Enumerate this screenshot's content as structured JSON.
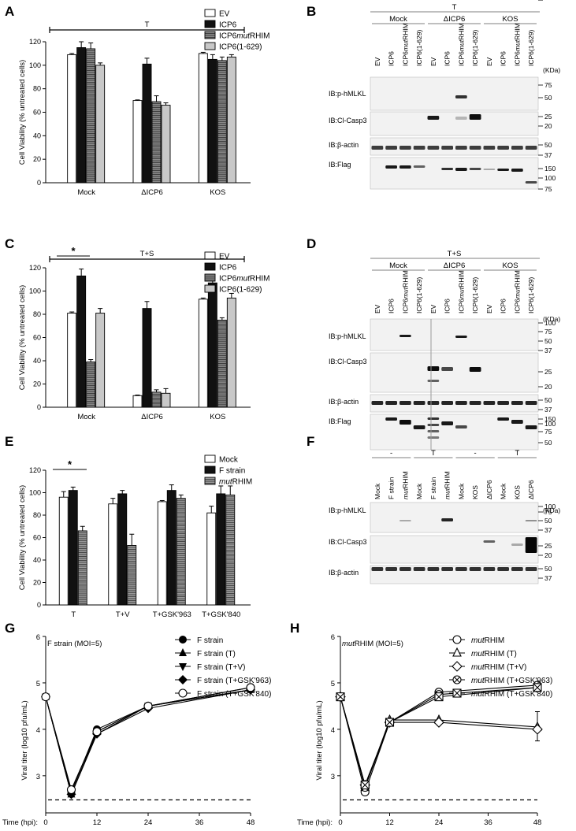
{
  "panels": {
    "A": {
      "label": "A",
      "chart_data": {
        "type": "bar",
        "treatment": "T",
        "categories": [
          "Mock",
          "ΔICP6",
          "KOS"
        ],
        "series": [
          {
            "name": "EV",
            "values": [
              109,
              70,
              110
            ],
            "err": [
              1,
              0.5,
              1
            ],
            "color": "#ffffff"
          },
          {
            "name": "ICP6",
            "values": [
              115,
              101,
              105
            ],
            "err": [
              5,
              5,
              4
            ],
            "color": "#111111"
          },
          {
            "name": "ICP6mutRHIM",
            "values": [
              114,
              69,
              104
            ],
            "err": [
              5,
              5,
              3
            ],
            "color": "#888888"
          },
          {
            "name": "ICP6(1-629)",
            "values": [
              100,
              66,
              107
            ],
            "err": [
              2,
              2,
              2
            ],
            "color": "#c8c8c8"
          }
        ],
        "ylabel": "Cell Viability (% untreated cells)",
        "ylim": [
          0,
          120
        ],
        "yticks": [
          0,
          20,
          40,
          60,
          80,
          100,
          120
        ],
        "legend": "top-right"
      }
    },
    "C": {
      "label": "C",
      "chart_data": {
        "type": "bar",
        "treatment": "T+S",
        "significance": "*",
        "categories": [
          "Mock",
          "ΔICP6",
          "KOS"
        ],
        "series": [
          {
            "name": "EV",
            "values": [
              81,
              10,
              93
            ],
            "err": [
              1,
              0.5,
              1
            ],
            "color": "#ffffff"
          },
          {
            "name": "ICP6",
            "values": [
              113,
              85,
              107
            ],
            "err": [
              6,
              6,
              6
            ],
            "color": "#111111"
          },
          {
            "name": "ICP6mutRHIM",
            "values": [
              39,
              13,
              75
            ],
            "err": [
              2,
              2,
              2
            ],
            "color": "#888888"
          },
          {
            "name": "ICP6(1-629)",
            "values": [
              81,
              12,
              94
            ],
            "err": [
              4,
              4,
              4
            ],
            "color": "#c8c8c8"
          }
        ],
        "ylabel": "Cell Viability (% untreated cells)",
        "ylim": [
          0,
          120
        ],
        "yticks": [
          0,
          20,
          40,
          60,
          80,
          100,
          120
        ],
        "legend": "top-right"
      }
    },
    "E": {
      "label": "E",
      "chart_data": {
        "type": "bar",
        "significance": "*",
        "categories": [
          "T",
          "T+V",
          "T+GSK'963",
          "T+GSK'840"
        ],
        "series": [
          {
            "name": "Mock",
            "values": [
              96,
              90,
              92,
              82
            ],
            "err": [
              5,
              5,
              1,
              6
            ],
            "color": "#ffffff"
          },
          {
            "name": "F strain",
            "values": [
              102,
              99,
              102,
              99
            ],
            "err": [
              3,
              3,
              5,
              7
            ],
            "color": "#111111"
          },
          {
            "name": "mutRHIM",
            "values": [
              66,
              53,
              95,
              98
            ],
            "err": [
              4,
              10,
              3,
              8
            ],
            "color": "#999999"
          }
        ],
        "ylabel": "Cell Viability (% untreated cells)",
        "ylim": [
          0,
          120
        ],
        "yticks": [
          0,
          20,
          40,
          60,
          80,
          100,
          120
        ],
        "legend": "top-right"
      }
    },
    "G": {
      "label": "G",
      "chart_data": {
        "type": "line",
        "title": "F strain (MOI=5)",
        "x": [
          0,
          6,
          12,
          24,
          48
        ],
        "series": [
          {
            "name": "F strain",
            "values": [
              4.7,
              2.65,
              4.0,
              4.5,
              4.9
            ],
            "marker": "circle-filled"
          },
          {
            "name": "F strain (T)",
            "values": [
              4.7,
              2.6,
              3.95,
              4.5,
              4.85
            ],
            "marker": "triangle-up-filled"
          },
          {
            "name": "F strain (T+V)",
            "values": [
              4.7,
              2.6,
              3.9,
              4.5,
              4.85
            ],
            "marker": "triangle-down-filled"
          },
          {
            "name": "F strain (T+GSK'963)",
            "values": [
              4.7,
              2.6,
              3.9,
              4.45,
              4.85
            ],
            "marker": "diamond-filled"
          },
          {
            "name": "F strain (T+GSK'840)",
            "values": [
              4.7,
              2.7,
              3.95,
              4.5,
              4.9
            ],
            "marker": "circle-open"
          }
        ],
        "detection_limit": 2.48,
        "xlabel": "Time (hpi):",
        "ylabel": "Viral titer (log10 pfu/mL)",
        "xlim": [
          0,
          48
        ],
        "xticks": [
          0,
          12,
          24,
          36,
          48
        ],
        "ylim": [
          2.2,
          6
        ],
        "yticks": [
          3,
          4,
          5,
          6
        ],
        "legend": "top-right"
      }
    },
    "H": {
      "label": "H",
      "chart_data": {
        "type": "line",
        "title_italic": "mut",
        "title_rest": "RHIM (MOI=5)",
        "x": [
          0,
          6,
          12,
          24,
          48
        ],
        "series": [
          {
            "name_italic": "mut",
            "name_rest": "RHIM",
            "values": [
              4.7,
              2.65,
              4.15,
              4.8,
              4.95
            ],
            "marker": "circle-open"
          },
          {
            "name_italic": "mut",
            "name_rest": "RHIM (T)",
            "values": [
              4.7,
              2.75,
              4.2,
              4.2,
              4.05
            ],
            "marker": "triangle-open"
          },
          {
            "name_italic": "mut",
            "name_rest": "RHIM (T+V)",
            "values": [
              4.7,
              2.8,
              4.15,
              4.15,
              4.0
            ],
            "marker": "diamond-open"
          },
          {
            "name_italic": "mut",
            "name_rest": "RHIM (T+GSK'963)",
            "values": [
              4.7,
              2.75,
              4.15,
              4.75,
              4.9
            ],
            "marker": "circle-x"
          },
          {
            "name_italic": "mut",
            "name_rest": "RHIM (T+GSK'840)",
            "values": [
              4.7,
              2.8,
              4.15,
              4.7,
              4.9
            ],
            "marker": "square-x"
          }
        ],
        "detection_limit": 2.48,
        "xlabel": "Time (hpi):",
        "ylabel": "Viral titer (log10 pfu/mL)",
        "xlim": [
          0,
          48
        ],
        "xticks": [
          0,
          12,
          24,
          36,
          48
        ],
        "ylim": [
          2.2,
          6
        ],
        "yticks": [
          3,
          4,
          5,
          6
        ],
        "legend": "top-right"
      }
    },
    "B": {
      "label": "B",
      "treatment": "T",
      "groups": [
        "Mock",
        "ΔICP6",
        "KOS"
      ],
      "lanes": [
        "EV",
        "ICP6",
        "ICP6mutRHIM",
        "ICP6(1-629)",
        "EV",
        "ICP6",
        "ICP6mutRHIM",
        "ICP6(1-629)",
        "EV",
        "ICP6",
        "ICP6mutRHIM",
        "ICP6(1-629)"
      ],
      "kda_label": "(KDa)",
      "blots": [
        {
          "label": "IB:p-hMLKL",
          "markers": [
            "75",
            "50"
          ]
        },
        {
          "label": "IB:Cl-Casp3",
          "markers": [
            "25",
            "20"
          ]
        },
        {
          "label": "IB:β-actin",
          "markers": [
            "50",
            "37"
          ]
        },
        {
          "label": "IB:Flag",
          "markers": [
            "150",
            "100",
            "75"
          ]
        }
      ]
    },
    "D": {
      "label": "D",
      "treatment": "T+S",
      "groups": [
        "Mock",
        "ΔICP6",
        "KOS"
      ],
      "lanes": [
        "EV",
        "ICP6",
        "ICP6mutRHIM",
        "ICP6(1-629)",
        "EV",
        "ICP6",
        "ICP6mutRHIM",
        "ICP6(1-629)",
        "EV",
        "ICP6",
        "ICP6mutRHIM",
        "ICP6(1-629)"
      ],
      "kda_label": "(KDa)",
      "blots": [
        {
          "label": "IB:p-hMLKL",
          "markers": [
            "100",
            "75",
            "50",
            "37"
          ]
        },
        {
          "label": "IB:Cl-Casp3",
          "markers": [
            "25",
            "20"
          ]
        },
        {
          "label": "IB:β-actin",
          "markers": [
            "50",
            "37"
          ]
        },
        {
          "label": "IB:Flag",
          "markers": [
            "150",
            "100",
            "75",
            "50"
          ]
        }
      ]
    },
    "F": {
      "label": "F",
      "treatments": [
        "-",
        "T",
        "-",
        "T"
      ],
      "lanes": [
        "Mock",
        "F strain",
        "mutRHIM",
        "Mock",
        "F strain",
        "mutRHIM",
        "Mock",
        "KOS",
        "ΔICP6",
        "Mock",
        "KOS",
        "ΔICP6"
      ],
      "kda_label": "(KDa)",
      "blots": [
        {
          "label": "IB:p-hMLKL",
          "markers": [
            "100",
            "75",
            "50",
            "37"
          ]
        },
        {
          "label": "IB:Cl-Casp3",
          "markers": [
            "25",
            "20"
          ]
        },
        {
          "label": "IB:β-actin",
          "markers": [
            "50",
            "37"
          ]
        }
      ]
    }
  }
}
